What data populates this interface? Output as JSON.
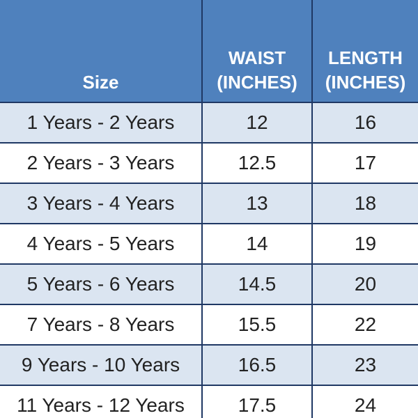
{
  "table": {
    "header": [
      "Size",
      "WAIST (INCHES)",
      "LENGTH (INCHES)"
    ],
    "rows": [
      [
        "1 Years - 2 Years",
        12,
        16
      ],
      [
        "2 Years - 3 Years",
        12.5,
        17
      ],
      [
        "3 Years - 4 Years",
        13,
        18
      ],
      [
        "4 Years - 5 Years",
        14,
        19
      ],
      [
        "5 Years - 6 Years",
        14.5,
        20
      ],
      [
        "7 Years - 8 Years",
        15.5,
        22
      ],
      [
        "9 Years - 10 Years",
        16.5,
        23
      ],
      [
        "11 Years - 12 Years",
        17.5,
        24
      ]
    ]
  }
}
